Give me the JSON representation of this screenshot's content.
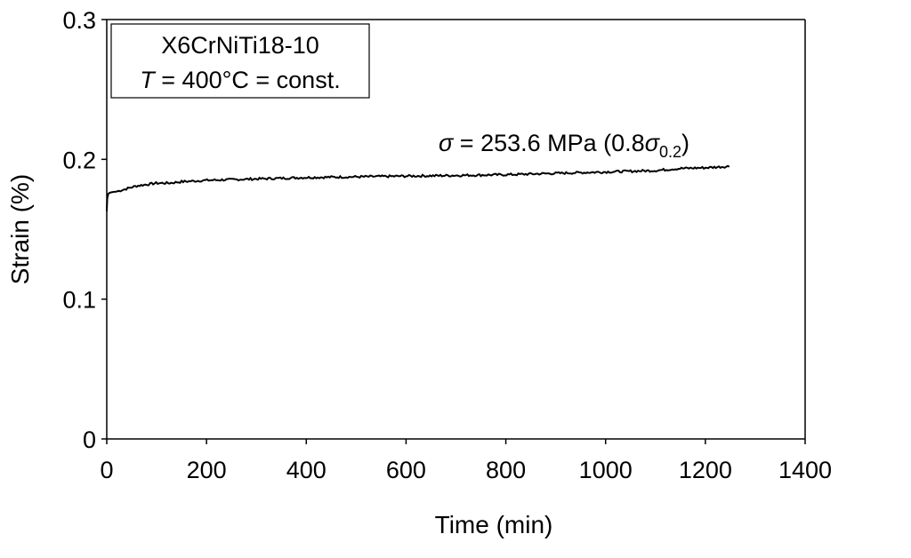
{
  "chart_data": {
    "type": "line",
    "xlabel": "Time (min)",
    "ylabel": "Strain (%)",
    "xlim": [
      0,
      1400
    ],
    "ylim": [
      0,
      0.3
    ],
    "x_ticks": [
      "0",
      "200",
      "400",
      "600",
      "800",
      "1000",
      "1200",
      "1400"
    ],
    "y_ticks": [
      "0",
      "0.1",
      "0.2",
      "0.3"
    ],
    "grid": false,
    "legend_box": {
      "line1": "X6CrNiTi18-10",
      "line2_var": "T",
      "line2_rest": " = 400°C = const."
    },
    "annotation": {
      "sym": "σ",
      "main": " = 253.6 MPa (0.8",
      "sym2": "σ",
      "sub": "0.2",
      "close": ")"
    },
    "series": [
      {
        "x": [
          0,
          1,
          2,
          5,
          10,
          20,
          30,
          40,
          50,
          60,
          80,
          100,
          125,
          150,
          200,
          250,
          300,
          350,
          400,
          500,
          600,
          700,
          800,
          900,
          1000,
          1100,
          1150,
          1200,
          1250
        ],
        "y": [
          0.163,
          0.172,
          0.175,
          0.176,
          0.1765,
          0.177,
          0.178,
          0.179,
          0.18,
          0.181,
          0.182,
          0.183,
          0.183,
          0.184,
          0.185,
          0.1855,
          0.186,
          0.1865,
          0.187,
          0.1875,
          0.188,
          0.1885,
          0.189,
          0.19,
          0.191,
          0.192,
          0.1935,
          0.194,
          0.195
        ]
      }
    ]
  }
}
